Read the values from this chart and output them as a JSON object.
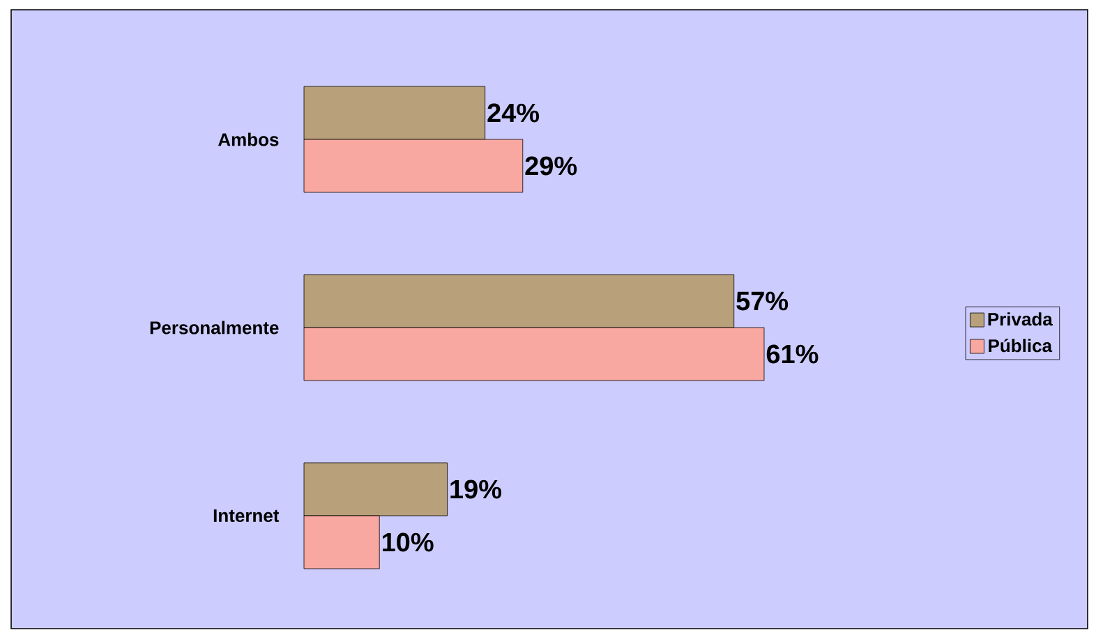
{
  "chart_data": {
    "type": "bar",
    "orientation": "horizontal",
    "categories": [
      "Ambos",
      "Personalmente",
      "Internet"
    ],
    "legend": "right",
    "series": [
      {
        "name": "Privada",
        "color": "#b8a07a",
        "values": [
          24,
          57,
          19
        ],
        "value_labels": [
          "24%",
          "57%",
          "19%"
        ]
      },
      {
        "name": "Pública",
        "color": "#f8a8a0",
        "values": [
          29,
          61,
          10
        ],
        "value_labels": [
          "29%",
          "61%",
          "10%"
        ]
      }
    ]
  }
}
